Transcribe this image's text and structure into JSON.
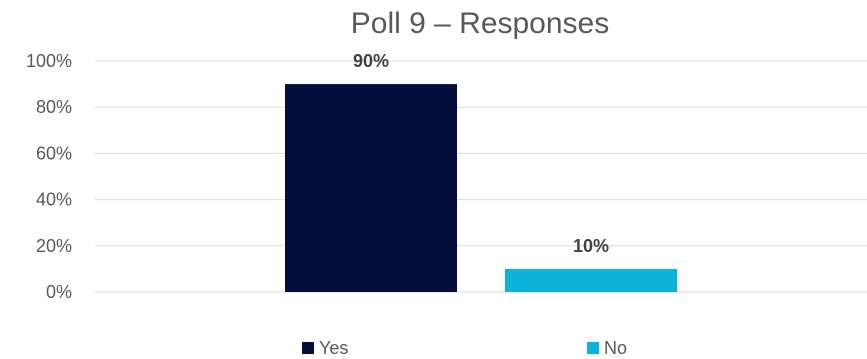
{
  "chart_data": {
    "type": "bar",
    "title": "Poll 9 – Responses",
    "categories": [
      "Yes",
      "No"
    ],
    "values": [
      90,
      10
    ],
    "value_labels": [
      "90%",
      "10%"
    ],
    "colors": [
      "#040e3a",
      "#0bb3dc"
    ],
    "ylim": [
      0,
      100
    ],
    "yticks": [
      0,
      20,
      40,
      60,
      80,
      100
    ],
    "ytick_labels": [
      "0%",
      "20%",
      "40%",
      "60%",
      "80%",
      "100%"
    ],
    "xlabel": "",
    "ylabel": "",
    "grid": true,
    "legend": {
      "position": "bottom",
      "entries": [
        "Yes",
        "No"
      ]
    }
  }
}
